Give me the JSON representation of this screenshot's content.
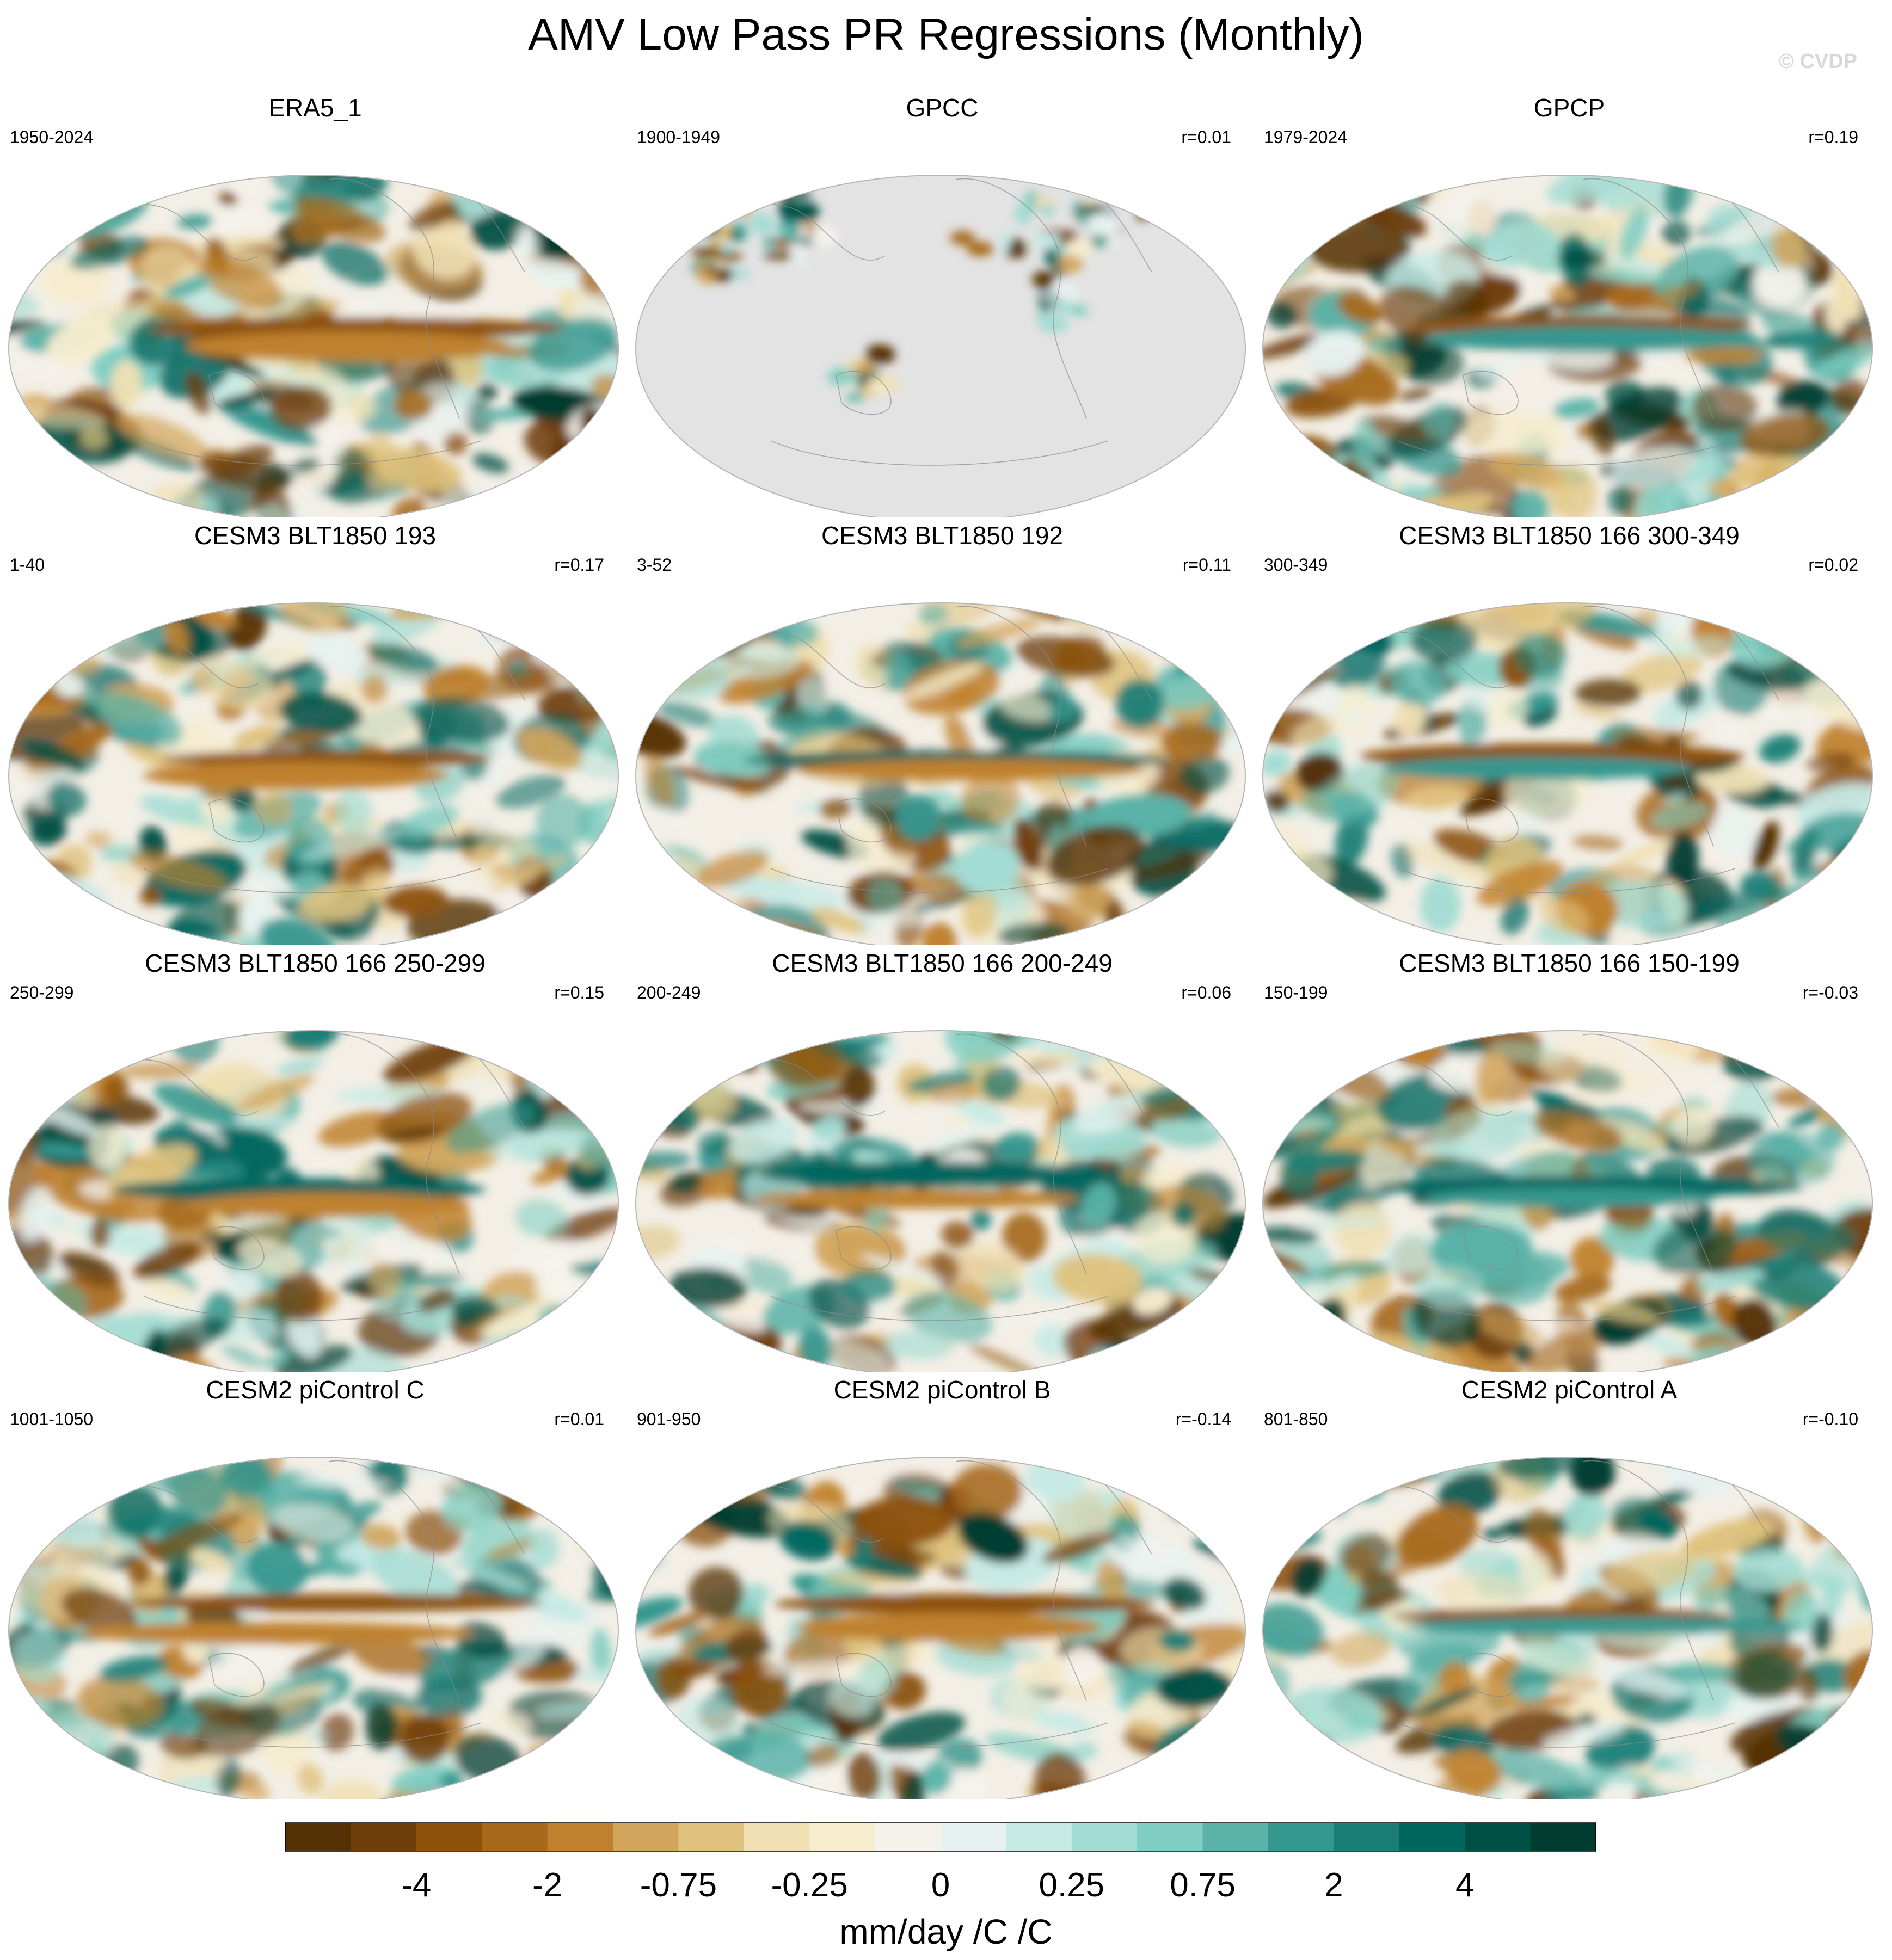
{
  "title": "AMV Low Pass PR Regressions (Monthly)",
  "credit": "© CVDP",
  "panels": [
    {
      "name": "ERA5_1",
      "period": "1950-2024",
      "corr": "",
      "seed": 11,
      "mask": false
    },
    {
      "name": "GPCC",
      "period": "1900-1949",
      "corr": "r=0.01",
      "seed": 23,
      "mask": true
    },
    {
      "name": "GPCP",
      "period": "1979-2024",
      "corr": "r=0.19",
      "seed": 37,
      "mask": false
    },
    {
      "name": "CESM3 BLT1850 193",
      "period": "1-40",
      "corr": "r=0.17",
      "seed": 41,
      "mask": false
    },
    {
      "name": "CESM3 BLT1850 192",
      "period": "3-52",
      "corr": "r=0.11",
      "seed": 53,
      "mask": false
    },
    {
      "name": "CESM3 BLT1850 166 300-349",
      "period": "300-349",
      "corr": "r=0.02",
      "seed": 67,
      "mask": false
    },
    {
      "name": "CESM3 BLT1850 166 250-299",
      "period": "250-299",
      "corr": "r=0.15",
      "seed": 71,
      "mask": false
    },
    {
      "name": "CESM3 BLT1850 166 200-249",
      "period": "200-249",
      "corr": "r=0.06",
      "seed": 83,
      "mask": false
    },
    {
      "name": "CESM3 BLT1850 166 150-199",
      "period": "150-199",
      "corr": "r=-0.03",
      "seed": 97,
      "mask": false
    },
    {
      "name": "CESM2 piControl C",
      "period": "1001-1050",
      "corr": "r=0.01",
      "seed": 101,
      "mask": false
    },
    {
      "name": "CESM2 piControl B",
      "period": "901-950",
      "corr": "r=-0.14",
      "seed": 113,
      "mask": false
    },
    {
      "name": "CESM2 piControl A",
      "period": "801-850",
      "corr": "r=-0.10",
      "seed": 127,
      "mask": false
    }
  ],
  "colorbar": {
    "label": "mm/day /C /C",
    "tick_labels": [
      "-4",
      "-2",
      "-0.75",
      "-0.25",
      "0",
      "0.25",
      "0.75",
      "2",
      "4"
    ],
    "colors": [
      "#543005",
      "#6f3e0a",
      "#8c510a",
      "#a6691c",
      "#bf812d",
      "#d2a55c",
      "#dfc27d",
      "#f0e0b4",
      "#f6ecce",
      "#f5f2ec",
      "#e7f2f0",
      "#c7eae5",
      "#a3dcd3",
      "#80cdc1",
      "#5ab2a8",
      "#35978f",
      "#1a7e76",
      "#01665e",
      "#004f44",
      "#003c30"
    ]
  }
}
